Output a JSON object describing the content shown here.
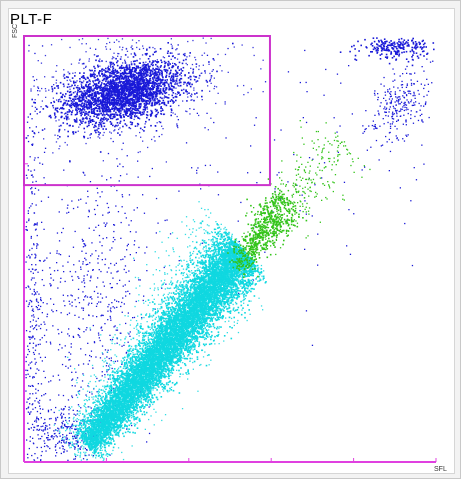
{
  "chart_data": {
    "type": "scatter",
    "title": "PLT-F",
    "xlabel": "SFL",
    "ylabel": "FSC",
    "xlim": [
      0,
      100
    ],
    "ylim": [
      0,
      100
    ],
    "grid": false,
    "x_ticks": [
      0,
      20,
      40,
      60,
      80,
      100
    ],
    "y_ticks": [
      70,
      100
    ],
    "colors": {
      "axis": "#e040e0",
      "gate": "#cc33cc",
      "blue": "#1a1ad8",
      "cyan": "#10d8e0",
      "green": "#33c41a"
    },
    "gate": {
      "x": [
        0,
        59.7
      ],
      "y": [
        65,
        100
      ]
    },
    "series": [
      {
        "color": "blue",
        "density": "dense",
        "count": 2500,
        "cx": 24,
        "cy": 87,
        "sx": 7,
        "sy": 3.5,
        "tilt": 0.15
      },
      {
        "color": "blue",
        "density": "halo",
        "count": 700,
        "cx": 24,
        "cy": 88,
        "sx": 14,
        "sy": 6,
        "tilt": 0.1
      },
      {
        "color": "blue",
        "density": "dense",
        "count": 220,
        "cx": 90,
        "cy": 97.5,
        "sx": 4,
        "sy": 1.2,
        "tilt": 0
      },
      {
        "color": "blue",
        "density": "sparse",
        "count": 260,
        "cx": 91,
        "cy": 84,
        "sx": 3.5,
        "sy": 5,
        "tilt": 0.3
      },
      {
        "color": "blue",
        "density": "sparse",
        "count": 420,
        "cx": 2,
        "cy": 25,
        "sx": 1.5,
        "sy": 30,
        "tilt": 0
      },
      {
        "color": "blue",
        "density": "sparse",
        "count": 520,
        "cx": 17,
        "cy": 38,
        "sx": 7,
        "sy": 16,
        "tilt": 0
      },
      {
        "color": "blue",
        "density": "sparse",
        "count": 260,
        "cx": 10,
        "cy": 7,
        "sx": 4,
        "sy": 4,
        "tilt": 0
      },
      {
        "color": "blue",
        "density": "sparse",
        "count": 160,
        "cx": 55,
        "cy": 70,
        "sx": 28,
        "sy": 18,
        "tilt": 0
      },
      {
        "color": "cyan",
        "density": "dense",
        "count": 9000,
        "line": true,
        "x0": 15,
        "y0": 4,
        "x1": 53,
        "y1": 50,
        "spread": 2.8
      },
      {
        "color": "cyan",
        "density": "halo",
        "count": 2200,
        "line": true,
        "x0": 12,
        "y0": 2,
        "x1": 52,
        "y1": 52,
        "spread": 5
      },
      {
        "color": "green",
        "density": "dense",
        "count": 600,
        "line": true,
        "x0": 51,
        "y0": 45,
        "x1": 64,
        "y1": 62,
        "spread": 2.2
      },
      {
        "color": "green",
        "density": "sparse",
        "count": 320,
        "line": true,
        "x0": 55,
        "y0": 50,
        "x1": 77,
        "y1": 76,
        "spread": 3.2
      }
    ]
  }
}
